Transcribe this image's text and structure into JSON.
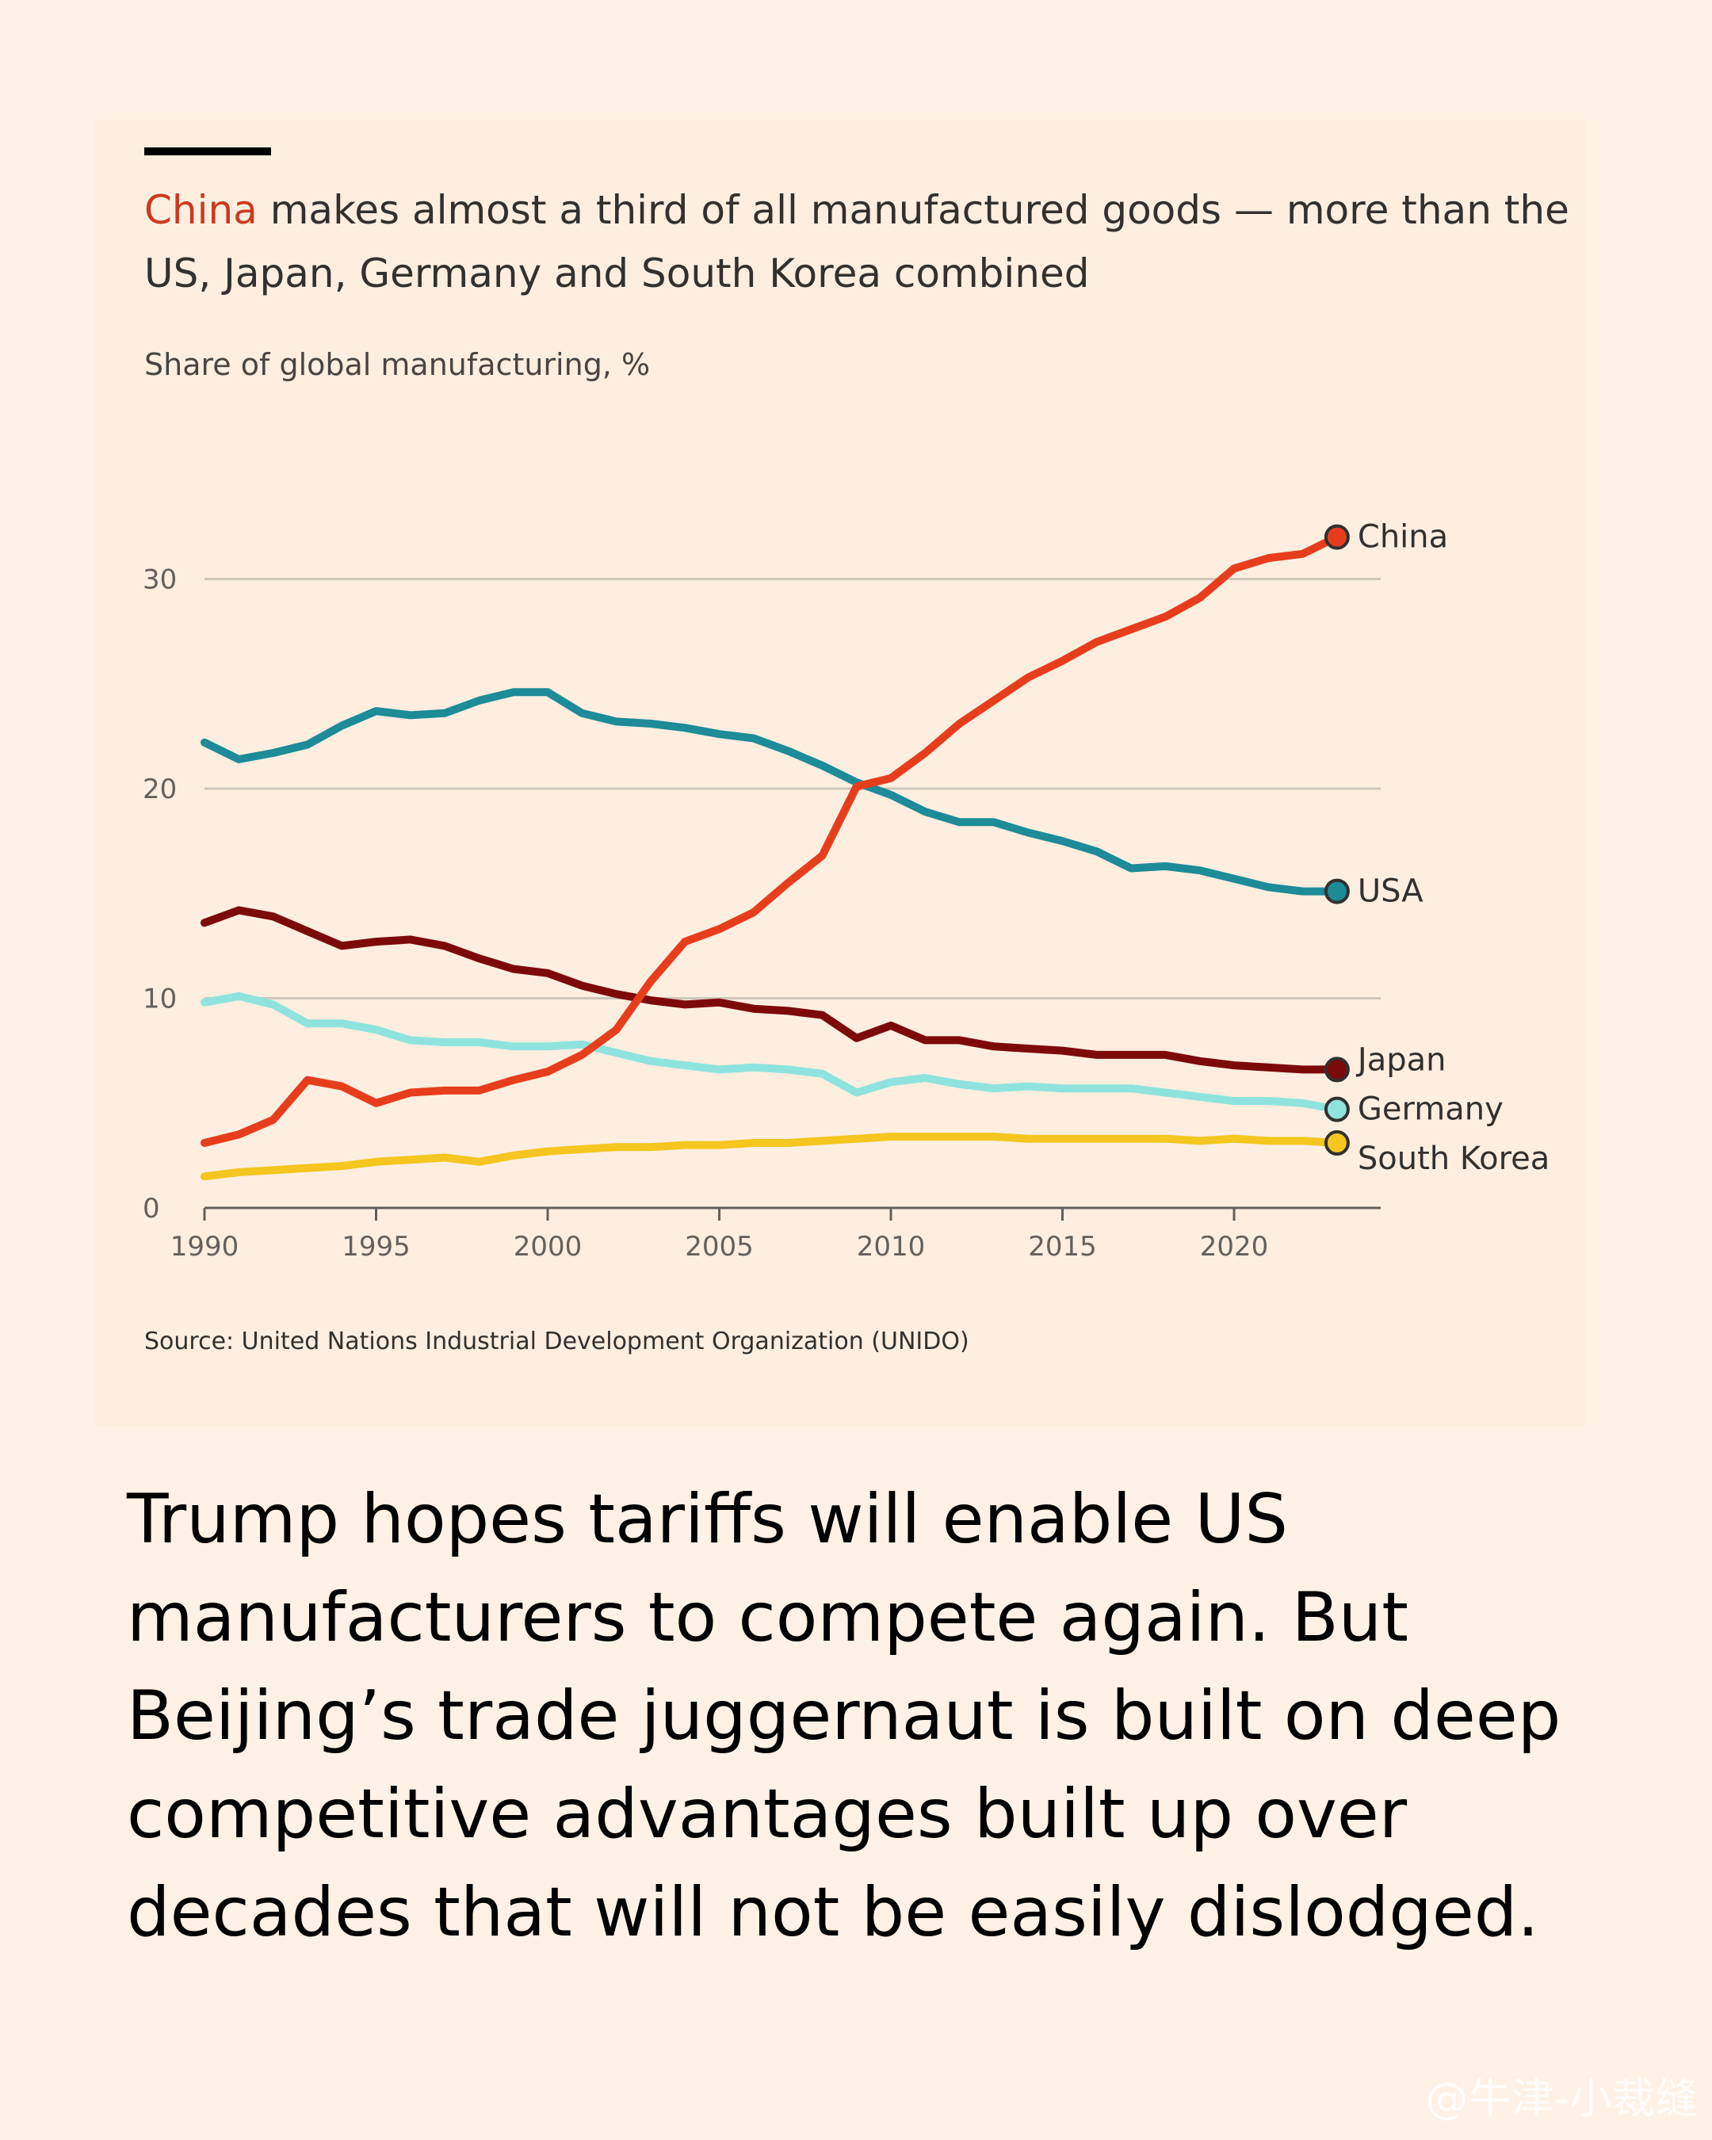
{
  "headline": {
    "highlight": "China",
    "rest": " makes almost a third of all manufactured goods — more than the US, Japan, Germany and South Korea combined"
  },
  "subtitle": "Share of global manufacturing, %",
  "source": "Source: United Nations Industrial Development Organization (UNIDO)",
  "body_text": "Trump hopes tariffs will enable US manufacturers to compete again. But Beijing’s trade juggernaut is built on deep competitive advantages built up over decades that will not be easily dislodged.",
  "watermark": "@牛津-小裁缝",
  "chart_data": {
    "type": "line",
    "title": "",
    "xlabel": "",
    "ylabel": "Share of global manufacturing, %",
    "xlim": [
      1990,
      2023
    ],
    "ylim": [
      0,
      33
    ],
    "x_ticks": [
      "1990",
      "1995",
      "2000",
      "2005",
      "2010",
      "2015",
      "2020"
    ],
    "y_ticks": [
      "0",
      "10",
      "20",
      "30"
    ],
    "grid": true,
    "legend": "end-of-line labels",
    "x": [
      1990,
      1991,
      1992,
      1993,
      1994,
      1995,
      1996,
      1997,
      1998,
      1999,
      2000,
      2001,
      2002,
      2003,
      2004,
      2005,
      2006,
      2007,
      2008,
      2009,
      2010,
      2011,
      2012,
      2013,
      2014,
      2015,
      2016,
      2017,
      2018,
      2019,
      2020,
      2021,
      2022,
      2023
    ],
    "series": [
      {
        "name": "China",
        "color": "#e63e1d",
        "values": [
          3.1,
          3.5,
          4.2,
          6.1,
          5.8,
          5.0,
          5.5,
          5.6,
          5.6,
          6.1,
          6.5,
          7.3,
          8.5,
          10.8,
          12.7,
          13.3,
          14.1,
          15.5,
          16.8,
          20.1,
          20.5,
          21.7,
          23.1,
          24.2,
          25.3,
          26.1,
          27.0,
          27.6,
          28.2,
          29.1,
          30.5,
          31.0,
          31.2,
          32.0
        ]
      },
      {
        "name": "USA",
        "color": "#1d8b98",
        "values": [
          22.2,
          21.4,
          21.7,
          22.1,
          23.0,
          23.7,
          23.5,
          23.6,
          24.2,
          24.6,
          24.6,
          23.6,
          23.2,
          23.1,
          22.9,
          22.6,
          22.4,
          21.8,
          21.1,
          20.3,
          19.7,
          18.9,
          18.4,
          18.4,
          17.9,
          17.5,
          17.0,
          16.2,
          16.3,
          16.1,
          15.7,
          15.3,
          15.1,
          15.1
        ]
      },
      {
        "name": "Japan",
        "color": "#7d0a0a",
        "values": [
          13.6,
          14.2,
          13.9,
          13.2,
          12.5,
          12.7,
          12.8,
          12.5,
          11.9,
          11.4,
          11.2,
          10.6,
          10.2,
          9.9,
          9.7,
          9.8,
          9.5,
          9.4,
          9.2,
          8.1,
          8.7,
          8.0,
          8.0,
          7.7,
          7.6,
          7.5,
          7.3,
          7.3,
          7.3,
          7.0,
          6.8,
          6.7,
          6.6,
          6.6
        ]
      },
      {
        "name": "Germany",
        "color": "#8fe3dd",
        "values": [
          9.8,
          10.1,
          9.7,
          8.8,
          8.8,
          8.5,
          8.0,
          7.9,
          7.9,
          7.7,
          7.7,
          7.8,
          7.4,
          7.0,
          6.8,
          6.6,
          6.7,
          6.6,
          6.4,
          5.5,
          6.0,
          6.2,
          5.9,
          5.7,
          5.8,
          5.7,
          5.7,
          5.7,
          5.5,
          5.3,
          5.1,
          5.1,
          5.0,
          4.7
        ]
      },
      {
        "name": "South Korea",
        "color": "#f4c61f",
        "values": [
          1.5,
          1.7,
          1.8,
          1.9,
          2.0,
          2.2,
          2.3,
          2.4,
          2.2,
          2.5,
          2.7,
          2.8,
          2.9,
          2.9,
          3.0,
          3.0,
          3.1,
          3.1,
          3.2,
          3.3,
          3.4,
          3.4,
          3.4,
          3.4,
          3.3,
          3.3,
          3.3,
          3.3,
          3.3,
          3.2,
          3.3,
          3.2,
          3.2,
          3.1
        ]
      }
    ]
  }
}
